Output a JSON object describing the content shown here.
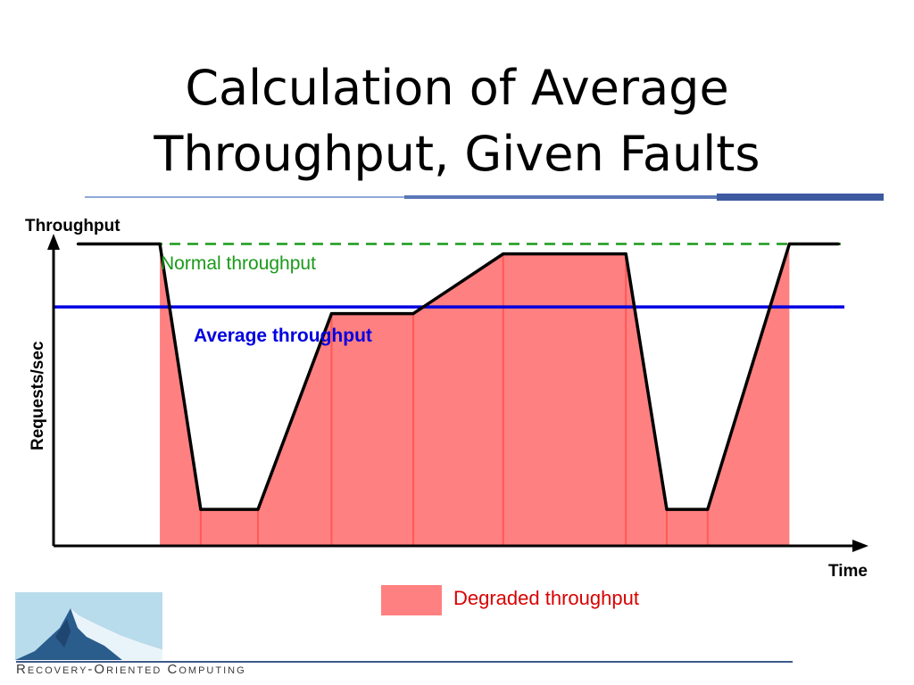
{
  "slide": {
    "title_line1": "Calculation of Average",
    "title_line2": "Throughput, Given Faults",
    "footer_text": "Recovery-Oriented Computing"
  },
  "colors": {
    "title_rule_light": "#8fa8d8",
    "title_rule_mid": "#5a78b8",
    "title_rule_dark": "#3d5aa0",
    "degraded_fill": "#ff8080",
    "degraded_edge": "#ff3a3a",
    "normal_line": "#1a9a1a",
    "average_line": "#0000e0",
    "actual_line": "#000000",
    "logo_sky": "#b8dcec",
    "logo_mountain": "#2a5c8c",
    "logo_snow": "#e8f4fa"
  },
  "chart_data": {
    "type": "line",
    "ylabel_top": "Throughput",
    "ylabel_side": "Requests/sec",
    "xlabel": "Time",
    "xlim": [
      0,
      100
    ],
    "ylim": [
      0,
      100
    ],
    "normal_throughput": {
      "label": "Normal throughput",
      "value": 91
    },
    "average_throughput": {
      "label": "Average throughput",
      "value": 72
    },
    "series": [
      {
        "x": [
          3,
          13,
          18,
          25,
          34,
          44,
          55,
          70,
          75,
          80,
          90,
          96
        ],
        "y": [
          91,
          91,
          11,
          11,
          70,
          70,
          88,
          88,
          11,
          11,
          91,
          91
        ]
      }
    ],
    "degraded": {
      "label": "Degraded throughput",
      "x_start": 13,
      "x_end": 90
    }
  }
}
